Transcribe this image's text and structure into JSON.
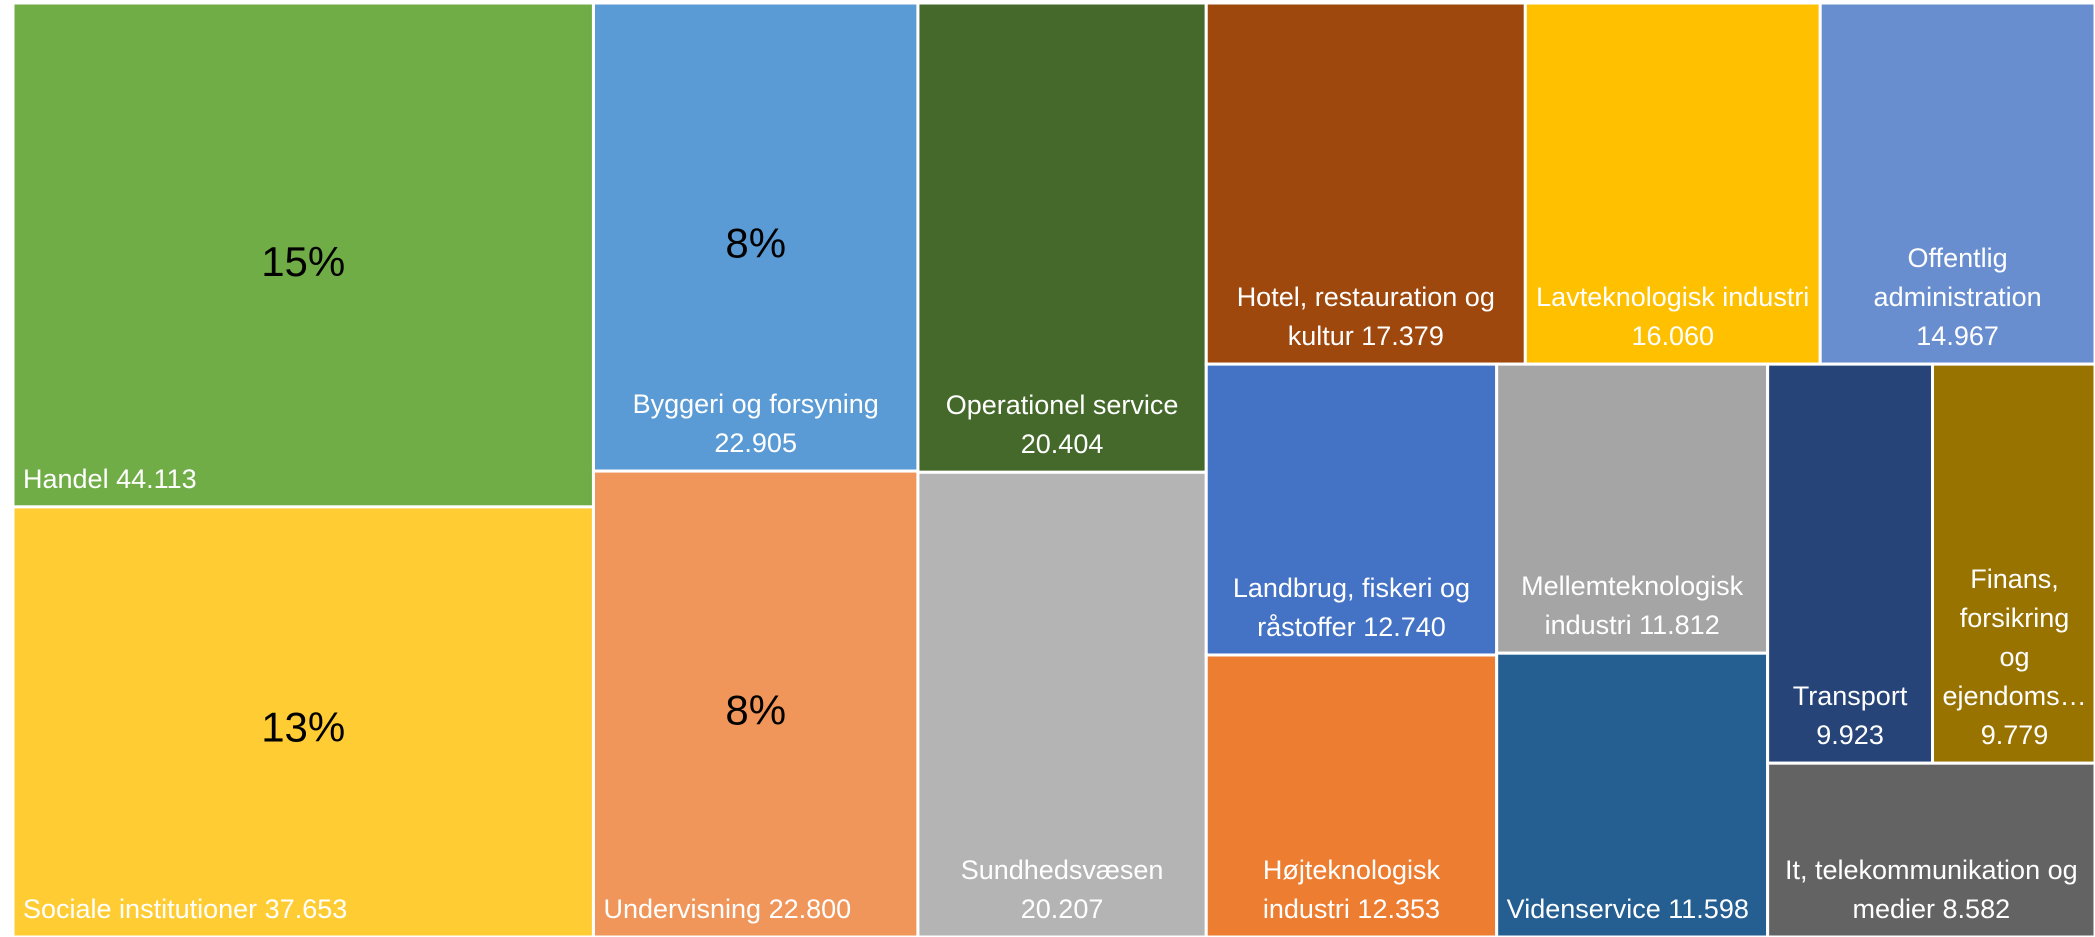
{
  "chart_data": {
    "type": "treemap",
    "categories": [
      "Handel",
      "Sociale institutioner",
      "Byggeri og forsyning",
      "Undervisning",
      "Operationel service",
      "Sundhedsvæsen",
      "Hotel, restauration og kultur",
      "Lavteknologisk industri",
      "Offentlig administration",
      "Landbrug, fiskeri og råstoffer",
      "Mellemteknologisk industri",
      "Højteknologisk industri",
      "Videnservice",
      "Transport",
      "Finans, forsikring og ejendoms…",
      "It, telekommunikation og medier"
    ],
    "values": [
      44113,
      37653,
      22905,
      22800,
      20404,
      20207,
      17379,
      16060,
      14967,
      12740,
      11812,
      12353,
      11598,
      9923,
      9779,
      8582
    ],
    "value_labels": [
      "44.113",
      "37.653",
      "22.905",
      "22.800",
      "20.404",
      "20.207",
      "17.379",
      "16.060",
      "14.967",
      "12.740",
      "11.812",
      "12.353",
      "11.598",
      "9.923",
      "9.779",
      "8.582"
    ],
    "share_labels": [
      "15%",
      "13%",
      "8%",
      "8%",
      null,
      null,
      null,
      null,
      null,
      null,
      null,
      null,
      null,
      null,
      null,
      null
    ],
    "colors": [
      "#70ad47",
      "#ffcd33",
      "#5b9bd5",
      "#f0965a",
      "#44692b",
      "#b4b4b4",
      "#9e480e",
      "#ffc000",
      "#698ed0",
      "#4472c4",
      "#a5a5a5",
      "#ed7d31",
      "#255e91",
      "#264478",
      "#997300",
      "#636363"
    ]
  }
}
